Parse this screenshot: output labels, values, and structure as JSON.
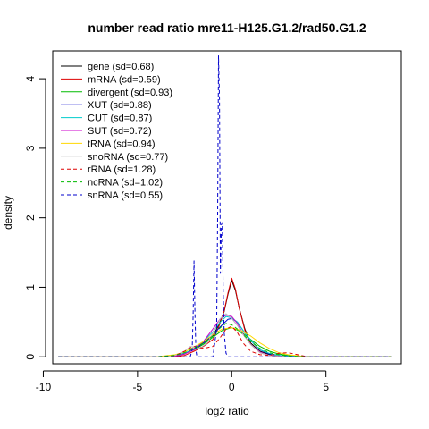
{
  "chart_data": {
    "type": "line",
    "title": "number read ratio mre11-H125.G1.2/rad50.G1.2",
    "xlabel": "log2 ratio",
    "ylabel": "density",
    "xlim": [
      -9.5,
      9
    ],
    "ylim": [
      -0.1,
      4.4
    ],
    "xticks": [
      -10,
      -5,
      0,
      5
    ],
    "yticks": [
      0,
      1,
      2,
      3,
      4
    ],
    "xtick_labels": [
      "-10",
      "-5",
      "0",
      "5"
    ],
    "ytick_labels": [
      "0",
      "1",
      "2",
      "3",
      "4"
    ],
    "legend_position": "top-left",
    "grid": false,
    "series": [
      {
        "name": "gene (sd=0.68)",
        "color": "#000000",
        "dashed": false,
        "x": [
          -9.2,
          -3.5,
          -3.0,
          -2.5,
          -2.0,
          -1.5,
          -1.0,
          -0.7,
          -0.4,
          -0.2,
          0.0,
          0.2,
          0.4,
          0.7,
          1.0,
          1.5,
          2.0,
          2.5,
          3.0,
          3.5,
          8.5
        ],
        "y": [
          0,
          0,
          0.01,
          0.04,
          0.12,
          0.2,
          0.3,
          0.45,
          0.65,
          0.9,
          1.1,
          0.95,
          0.7,
          0.4,
          0.2,
          0.08,
          0.03,
          0.01,
          0.005,
          0,
          0
        ]
      },
      {
        "name": "mRNA (sd=0.59)",
        "color": "#dd0000",
        "dashed": false,
        "x": [
          -9.2,
          -3.0,
          -2.5,
          -2.0,
          -1.5,
          -1.0,
          -0.7,
          -0.4,
          -0.2,
          0.0,
          0.2,
          0.4,
          0.7,
          1.0,
          1.5,
          2.0,
          2.5,
          3.0,
          8.5
        ],
        "y": [
          0,
          0,
          0.02,
          0.08,
          0.15,
          0.25,
          0.42,
          0.66,
          0.92,
          1.13,
          0.97,
          0.7,
          0.38,
          0.18,
          0.06,
          0.02,
          0.005,
          0,
          0
        ]
      },
      {
        "name": "divergent (sd=0.93)",
        "color": "#00bb00",
        "dashed": false,
        "x": [
          -9.2,
          -4.0,
          -3.0,
          -2.5,
          -2.0,
          -1.5,
          -1.0,
          -0.5,
          0.0,
          0.5,
          1.0,
          1.5,
          2.0,
          2.5,
          3.0,
          4.0,
          8.5
        ],
        "y": [
          0,
          0,
          0.02,
          0.05,
          0.1,
          0.18,
          0.28,
          0.38,
          0.42,
          0.36,
          0.25,
          0.15,
          0.08,
          0.04,
          0.02,
          0,
          0
        ]
      },
      {
        "name": "XUT (sd=0.88)",
        "color": "#0000cc",
        "dashed": false,
        "x": [
          -9.2,
          -4.0,
          -3.0,
          -2.5,
          -2.0,
          -1.5,
          -1.0,
          -0.5,
          -0.2,
          0.0,
          0.3,
          0.6,
          1.0,
          1.5,
          2.0,
          2.5,
          3.0,
          4.0,
          8.5
        ],
        "y": [
          0,
          0,
          0.02,
          0.05,
          0.1,
          0.2,
          0.32,
          0.46,
          0.54,
          0.55,
          0.5,
          0.38,
          0.24,
          0.1,
          0.04,
          0.02,
          0.01,
          0,
          0
        ]
      },
      {
        "name": "CUT (sd=0.87)",
        "color": "#00cccc",
        "dashed": false,
        "x": [
          -9.2,
          -4.0,
          -3.0,
          -2.5,
          -2.0,
          -1.5,
          -1.0,
          -0.6,
          -0.3,
          0.0,
          0.3,
          0.6,
          1.0,
          1.5,
          2.0,
          2.5,
          3.0,
          4.0,
          8.5
        ],
        "y": [
          0,
          0,
          0.02,
          0.05,
          0.12,
          0.22,
          0.36,
          0.5,
          0.58,
          0.56,
          0.5,
          0.38,
          0.24,
          0.1,
          0.05,
          0.02,
          0.01,
          0,
          0
        ]
      },
      {
        "name": "SUT (sd=0.72)",
        "color": "#cc00cc",
        "dashed": false,
        "x": [
          -9.2,
          -3.5,
          -3.0,
          -2.5,
          -2.0,
          -1.5,
          -1.0,
          -0.6,
          -0.3,
          0.0,
          0.3,
          0.6,
          1.0,
          1.5,
          2.0,
          2.5,
          3.0,
          8.5
        ],
        "y": [
          0,
          0,
          0.01,
          0.04,
          0.1,
          0.22,
          0.4,
          0.55,
          0.6,
          0.58,
          0.48,
          0.33,
          0.18,
          0.07,
          0.02,
          0.01,
          0,
          0
        ]
      },
      {
        "name": "tRNA (sd=0.94)",
        "color": "#ffd700",
        "dashed": false,
        "x": [
          -9.2,
          -4.0,
          -3.0,
          -2.5,
          -2.0,
          -1.5,
          -1.0,
          -0.5,
          0.0,
          0.5,
          1.0,
          1.5,
          2.0,
          2.5,
          3.0,
          4.0,
          8.5
        ],
        "y": [
          0,
          0,
          0.03,
          0.07,
          0.14,
          0.22,
          0.32,
          0.4,
          0.42,
          0.38,
          0.3,
          0.2,
          0.12,
          0.06,
          0.03,
          0,
          0
        ]
      },
      {
        "name": "snoRNA (sd=0.77)",
        "color": "#bbbbbb",
        "dashed": false,
        "x": [
          -9.2,
          -3.5,
          -3.0,
          -2.5,
          -2.2,
          -2.0,
          -1.7,
          -1.3,
          -1.0,
          -0.6,
          -0.3,
          0.0,
          0.3,
          0.6,
          1.0,
          1.5,
          2.0,
          2.5,
          3.0,
          8.5
        ],
        "y": [
          0,
          0,
          0.02,
          0.08,
          0.15,
          0.14,
          0.12,
          0.2,
          0.35,
          0.55,
          0.62,
          0.55,
          0.45,
          0.32,
          0.18,
          0.06,
          0.02,
          0.01,
          0,
          0
        ]
      },
      {
        "name": "rRNA (sd=1.28)",
        "color": "#dd0000",
        "dashed": true,
        "x": [
          -9.2,
          -3.5,
          -3.0,
          -2.5,
          -2.2,
          -2.0,
          -1.8,
          -1.5,
          -1.0,
          -0.6,
          -0.3,
          0.0,
          0.3,
          0.6,
          1.0,
          1.5,
          2.0,
          2.5,
          3.0,
          3.5,
          4.0,
          8.5
        ],
        "y": [
          0,
          0,
          0.02,
          0.08,
          0.13,
          0.15,
          0.14,
          0.12,
          0.15,
          0.28,
          0.4,
          0.44,
          0.35,
          0.2,
          0.08,
          0.03,
          0.02,
          0.05,
          0.06,
          0.03,
          0,
          0
        ]
      },
      {
        "name": "ncRNA (sd=1.02)",
        "color": "#00bb00",
        "dashed": true,
        "x": [
          -9.2,
          -4.0,
          -3.0,
          -2.5,
          -2.0,
          -1.5,
          -1.0,
          -0.6,
          -0.3,
          0.0,
          0.3,
          0.6,
          1.0,
          1.5,
          2.0,
          2.5,
          3.0,
          4.0,
          8.5
        ],
        "y": [
          0,
          0,
          0.02,
          0.06,
          0.12,
          0.2,
          0.3,
          0.42,
          0.48,
          0.46,
          0.4,
          0.32,
          0.22,
          0.12,
          0.06,
          0.03,
          0.01,
          0,
          0
        ]
      },
      {
        "name": "snRNA (sd=0.55)",
        "color": "#0000cc",
        "dashed": true,
        "x": [
          -9.2,
          -2.2,
          -2.1,
          -2.05,
          -2.0,
          -1.95,
          -1.9,
          -1.85,
          -1.5,
          -1.0,
          -0.8,
          -0.75,
          -0.7,
          -0.65,
          -0.6,
          -0.55,
          -0.5,
          -0.45,
          -0.4,
          -0.3,
          -0.2,
          -0.1,
          0.0,
          0.2,
          0.5,
          8.5
        ],
        "y": [
          0,
          0,
          0.1,
          0.6,
          1.38,
          0.6,
          0.1,
          0,
          0,
          0,
          0.4,
          2.0,
          4.33,
          3.7,
          1.2,
          1.9,
          1.93,
          0.9,
          0.35,
          0.05,
          0,
          0,
          0,
          0,
          0,
          0
        ]
      }
    ]
  }
}
